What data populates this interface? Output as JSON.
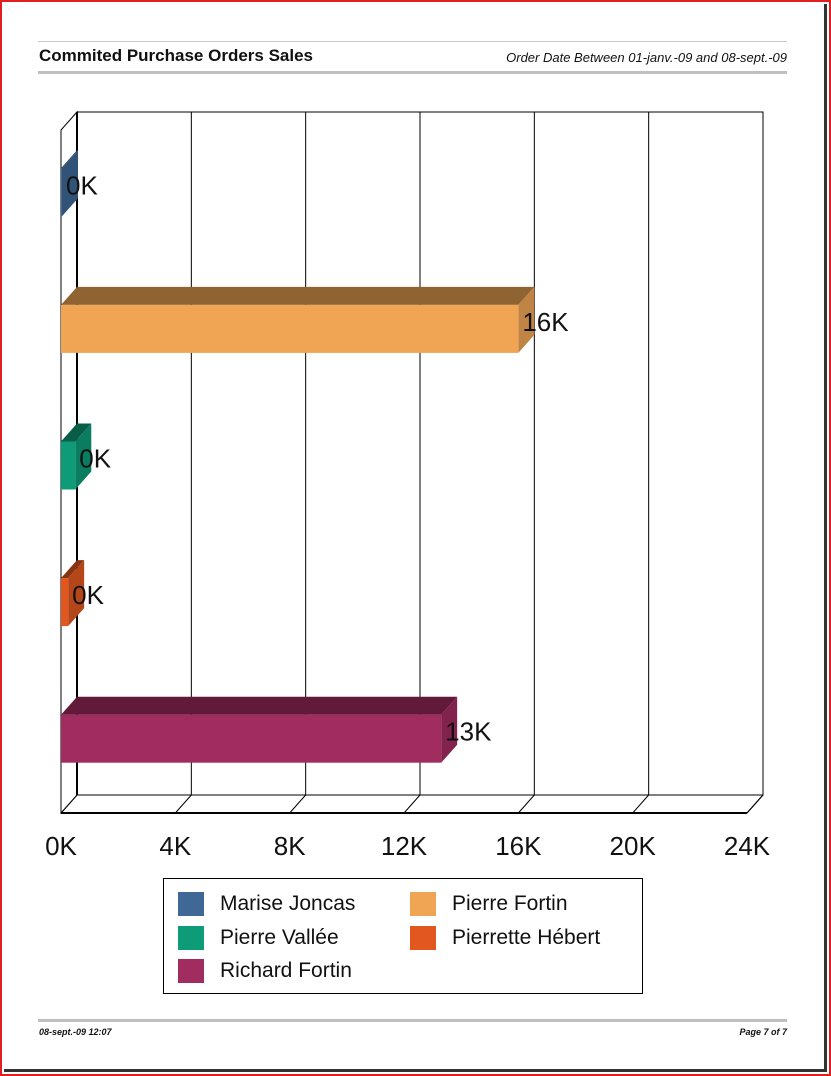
{
  "report": {
    "title": "Commited Purchase Orders Sales",
    "subtitle": "Order Date Between 01-janv.-09 and 08-sept.-09"
  },
  "footer": {
    "left": "08-sept.-09  12:07",
    "right": "Page 7 of 7"
  },
  "chart_data": {
    "type": "bar",
    "orientation": "horizontal",
    "three_d": true,
    "categories": [
      "Marise Joncas",
      "Pierre Fortin",
      "Pierre Vallée",
      "Pierrette Hébert",
      "Richard Fortin"
    ],
    "values": [
      0.03,
      16.0,
      0.5,
      0.25,
      13.3
    ],
    "value_labels": [
      "0K",
      "16K",
      "0K",
      "0K",
      "13K"
    ],
    "colors": [
      "#3f6896",
      "#f0a555",
      "#0d9b78",
      "#e2571f",
      "#a12c5f"
    ],
    "xlim": [
      0,
      24
    ],
    "x_ticks": [
      0,
      4,
      8,
      12,
      16,
      20,
      24
    ],
    "x_tick_labels": [
      "0K",
      "4K",
      "8K",
      "12K",
      "16K",
      "20K",
      "24K"
    ],
    "grid": true,
    "legend": {
      "placement": "bottom",
      "entries": [
        "Marise Joncas",
        "Pierre Fortin",
        "Pierre Vallée",
        "Pierrette Hébert",
        "Richard Fortin"
      ]
    }
  }
}
